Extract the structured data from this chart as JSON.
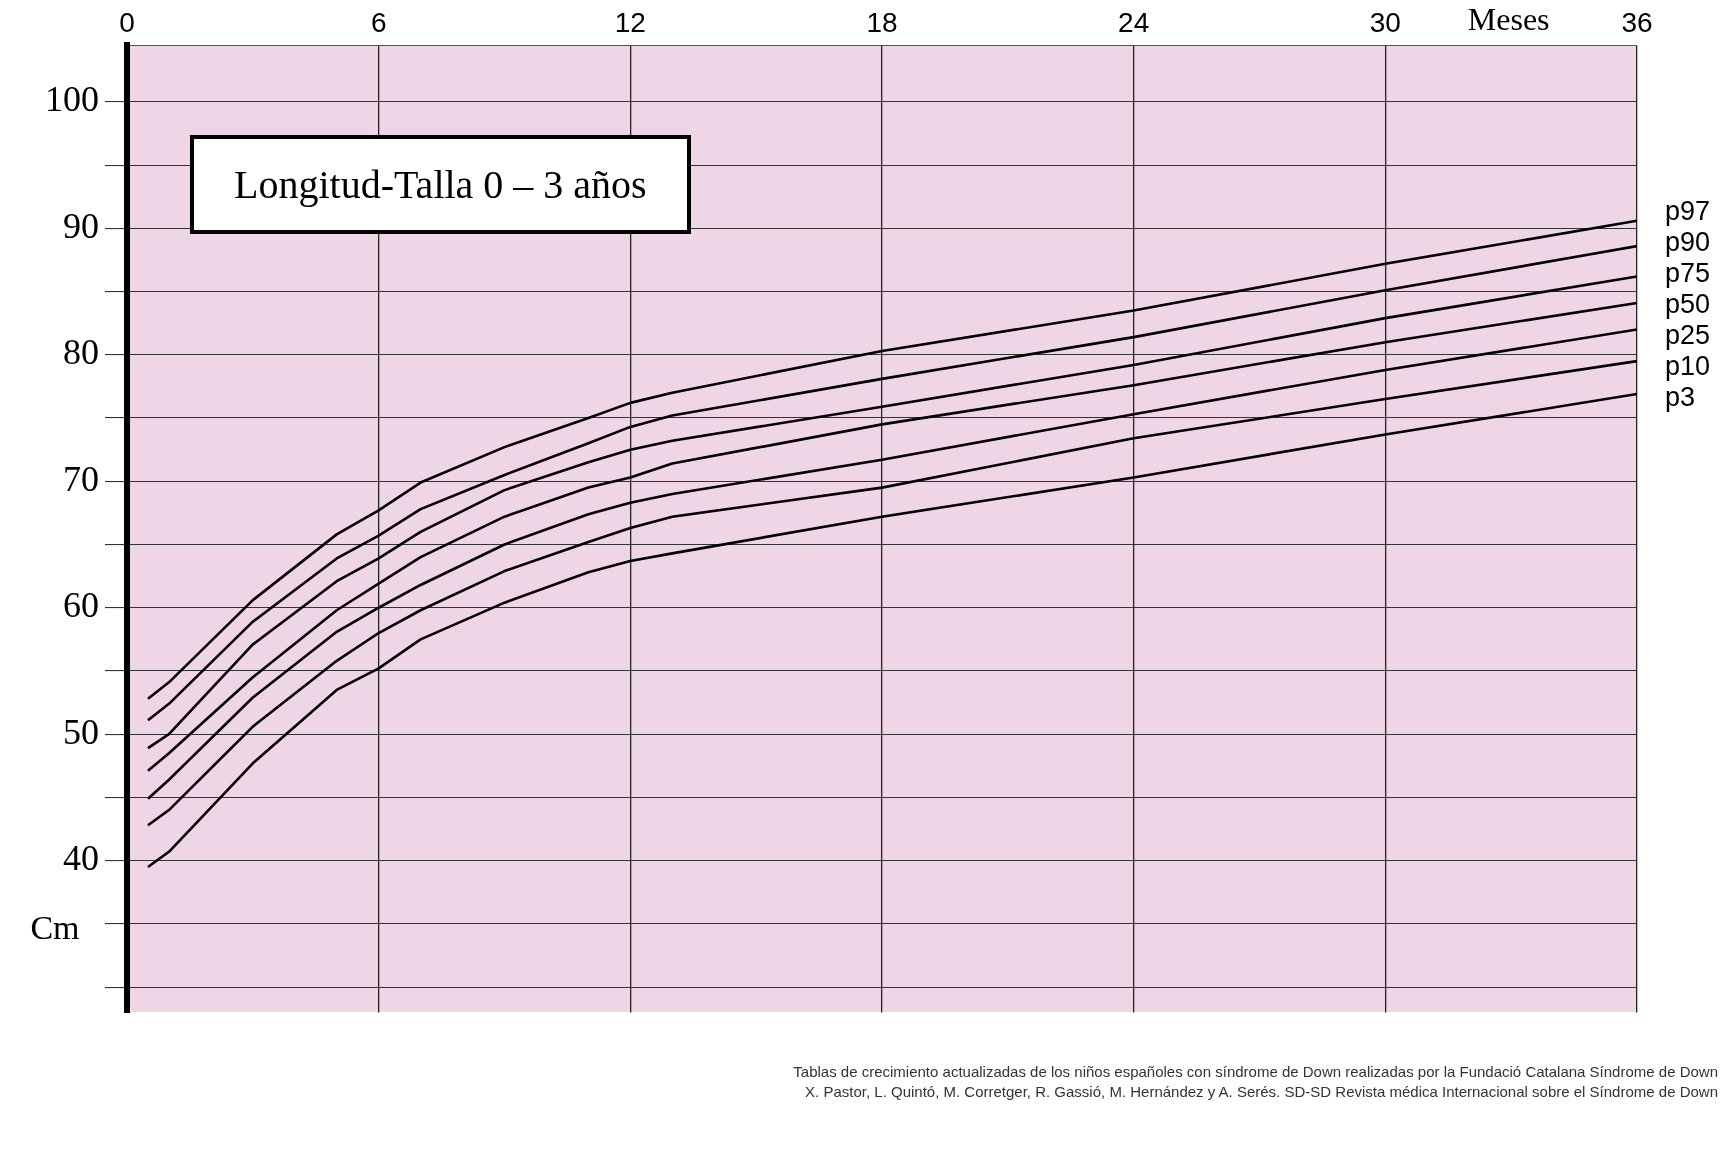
{
  "chart_data": {
    "type": "line",
    "title": "Longitud-Talla 0 – 3 años",
    "xlabel": "Meses",
    "ylabel": "Cm",
    "x": [
      0.5,
      1,
      3,
      5,
      6,
      7,
      9,
      11,
      12,
      13,
      18,
      24,
      30,
      36
    ],
    "xlim": [
      0,
      36
    ],
    "xticks": [
      0,
      6,
      12,
      18,
      24,
      30,
      36
    ],
    "ylim": [
      28,
      104.5
    ],
    "yticks": [
      {
        "value": 30,
        "label": null
      },
      {
        "value": 35,
        "label": null
      },
      40,
      {
        "value": 45,
        "label": null
      },
      50,
      {
        "value": 55,
        "label": null
      },
      60,
      {
        "value": 65,
        "label": null
      },
      70,
      {
        "value": 75,
        "label": null
      },
      80,
      {
        "value": 85,
        "label": null
      },
      90,
      {
        "value": 95,
        "label": null
      },
      100
    ],
    "grid": true,
    "series": [
      {
        "name": "p97",
        "color": "#000000",
        "values": [
          52.8,
          54.1,
          60.6,
          65.8,
          67.7,
          69.9,
          72.7,
          75.0,
          76.2,
          77.0,
          80.3,
          83.5,
          87.2,
          90.6
        ]
      },
      {
        "name": "p90",
        "color": "#000000",
        "values": [
          51.1,
          52.4,
          58.9,
          63.9,
          65.7,
          67.8,
          70.5,
          73.0,
          74.3,
          75.2,
          78.1,
          81.4,
          85.1,
          88.6
        ]
      },
      {
        "name": "p75",
        "color": "#000000",
        "values": [
          48.9,
          50.0,
          57.1,
          62.1,
          63.9,
          66.0,
          69.3,
          71.5,
          72.5,
          73.2,
          75.9,
          79.2,
          82.9,
          86.2
        ]
      },
      {
        "name": "p50",
        "color": "#000000",
        "values": [
          47.1,
          48.5,
          54.5,
          59.8,
          61.9,
          64.0,
          67.2,
          69.5,
          70.3,
          71.4,
          74.5,
          77.6,
          81.0,
          84.1
        ]
      },
      {
        "name": "p25",
        "color": "#000000",
        "values": [
          44.9,
          46.4,
          52.9,
          58.1,
          60.0,
          61.8,
          65.0,
          67.4,
          68.3,
          69.0,
          71.7,
          75.3,
          78.8,
          82.0
        ]
      },
      {
        "name": "p10",
        "color": "#000000",
        "values": [
          42.8,
          44.0,
          50.6,
          55.8,
          58.0,
          59.8,
          62.9,
          65.2,
          66.3,
          67.2,
          69.5,
          73.4,
          76.5,
          79.5
        ]
      },
      {
        "name": "p3",
        "color": "#000000",
        "values": [
          39.5,
          40.7,
          47.7,
          53.5,
          55.2,
          57.5,
          60.4,
          62.8,
          63.7,
          64.3,
          67.2,
          70.3,
          73.7,
          76.9
        ]
      }
    ],
    "annotations": [
      "Tablas de crecimiento actualizadas de los niños españoles con síndrome de Down realizadas por la Fundació Catalana Síndrome de Down",
      "X. Pastor, L. Quintó, M. Corretger, R. Gassió, M. Hernández y A. Serés. SD-SD Revista médica Internacional sobre el Síndrome de Down"
    ]
  }
}
